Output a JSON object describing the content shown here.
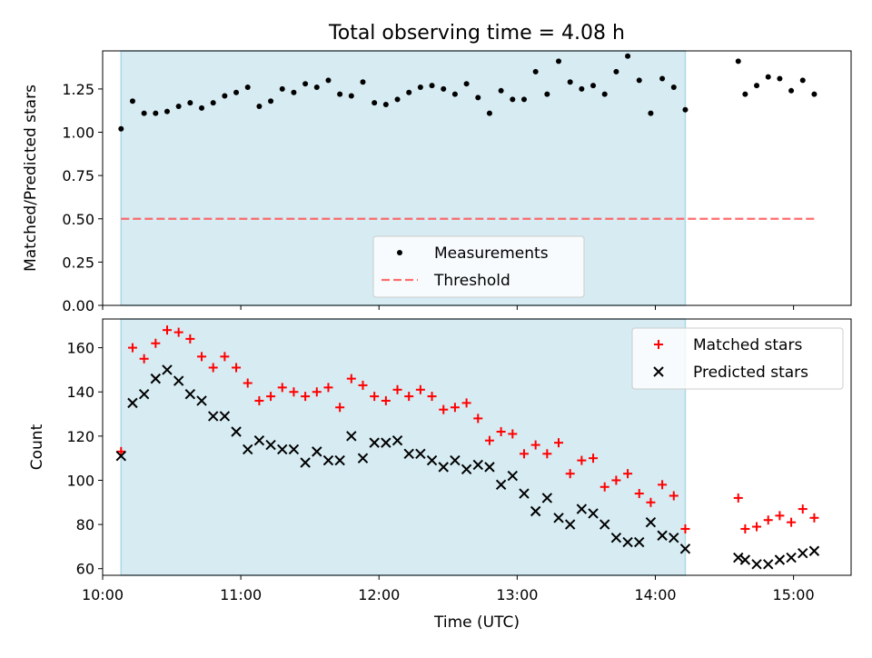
{
  "figure": {
    "title": "Total observing time = 4.08 h",
    "colors": {
      "observing_band": "#add8e6",
      "threshold": "#ff5555",
      "measurements": "#000000",
      "matched": "#ff0000",
      "predicted": "#000000"
    }
  },
  "chart_data": [
    {
      "type": "scatter",
      "panel": "top",
      "title": "Total observing time = 4.08 h",
      "xlabel": "",
      "ylabel": "Matched/Predicted stars",
      "xlim": [
        "10:00",
        "15:25"
      ],
      "ylim": [
        0,
        1.47
      ],
      "yticks": [
        "0.00",
        "0.25",
        "0.50",
        "0.75",
        "1.00",
        "1.25"
      ],
      "shaded_span": [
        "10:08",
        "14:13"
      ],
      "legend": {
        "placement": "lower-center",
        "entries": [
          "Measurements",
          "Threshold"
        ]
      },
      "series": [
        {
          "name": "Measurements",
          "marker": "dot",
          "x": [
            "10:08",
            "10:13",
            "10:18",
            "10:23",
            "10:28",
            "10:33",
            "10:38",
            "10:43",
            "10:48",
            "10:53",
            "10:58",
            "11:03",
            "11:08",
            "11:13",
            "11:18",
            "11:23",
            "11:28",
            "11:33",
            "11:38",
            "11:43",
            "11:48",
            "11:53",
            "11:58",
            "12:03",
            "12:08",
            "12:13",
            "12:18",
            "12:23",
            "12:28",
            "12:33",
            "12:38",
            "12:43",
            "12:48",
            "12:53",
            "12:58",
            "13:03",
            "13:08",
            "13:13",
            "13:18",
            "13:23",
            "13:28",
            "13:33",
            "13:38",
            "13:43",
            "13:48",
            "13:53",
            "13:58",
            "14:03",
            "14:08",
            "14:13",
            "14:36",
            "14:39",
            "14:44",
            "14:49",
            "14:54",
            "14:59",
            "15:04",
            "15:09"
          ],
          "y": [
            1.02,
            1.18,
            1.11,
            1.11,
            1.12,
            1.15,
            1.17,
            1.14,
            1.17,
            1.21,
            1.23,
            1.26,
            1.15,
            1.18,
            1.25,
            1.23,
            1.28,
            1.26,
            1.3,
            1.22,
            1.21,
            1.29,
            1.17,
            1.16,
            1.19,
            1.23,
            1.26,
            1.27,
            1.25,
            1.22,
            1.28,
            1.2,
            1.11,
            1.24,
            1.19,
            1.19,
            1.35,
            1.22,
            1.41,
            1.29,
            1.25,
            1.27,
            1.22,
            1.35,
            1.44,
            1.3,
            1.11,
            1.31,
            1.26,
            1.13,
            1.41,
            1.22,
            1.27,
            1.32,
            1.31,
            1.24,
            1.3,
            1.22
          ]
        },
        {
          "name": "Threshold",
          "style": "dashed",
          "x": [
            "10:08",
            "15:09"
          ],
          "y": [
            0.5,
            0.5
          ]
        }
      ]
    },
    {
      "type": "scatter",
      "panel": "bottom",
      "xlabel": "Time (UTC)",
      "ylabel": "Count",
      "xlim": [
        "10:00",
        "15:25"
      ],
      "ylim": [
        57,
        173
      ],
      "xticks": [
        "10:00",
        "11:00",
        "12:00",
        "13:00",
        "14:00",
        "15:00"
      ],
      "yticks": [
        60,
        80,
        100,
        120,
        140,
        160
      ],
      "shaded_span": [
        "10:08",
        "14:13"
      ],
      "legend": {
        "placement": "upper-right",
        "entries": [
          "Matched stars",
          "Predicted stars"
        ]
      },
      "series": [
        {
          "name": "Matched stars",
          "marker": "plus",
          "x": [
            "10:08",
            "10:13",
            "10:18",
            "10:23",
            "10:28",
            "10:33",
            "10:38",
            "10:43",
            "10:48",
            "10:53",
            "10:58",
            "11:03",
            "11:08",
            "11:13",
            "11:18",
            "11:23",
            "11:28",
            "11:33",
            "11:38",
            "11:43",
            "11:48",
            "11:53",
            "11:58",
            "12:03",
            "12:08",
            "12:13",
            "12:18",
            "12:23",
            "12:28",
            "12:33",
            "12:38",
            "12:43",
            "12:48",
            "12:53",
            "12:58",
            "13:03",
            "13:08",
            "13:13",
            "13:18",
            "13:23",
            "13:28",
            "13:33",
            "13:38",
            "13:43",
            "13:48",
            "13:53",
            "13:58",
            "14:03",
            "14:08",
            "14:13",
            "14:36",
            "14:39",
            "14:44",
            "14:49",
            "14:54",
            "14:59",
            "15:04",
            "15:09"
          ],
          "y": [
            113,
            160,
            155,
            162,
            168,
            167,
            164,
            156,
            151,
            156,
            151,
            144,
            136,
            138,
            142,
            140,
            138,
            140,
            142,
            133,
            146,
            143,
            138,
            136,
            141,
            138,
            141,
            138,
            132,
            133,
            135,
            128,
            118,
            122,
            121,
            112,
            116,
            112,
            117,
            103,
            109,
            110,
            97,
            100,
            103,
            94,
            90,
            98,
            93,
            78,
            92,
            78,
            79,
            82,
            84,
            81,
            87,
            83
          ]
        },
        {
          "name": "Predicted stars",
          "marker": "x",
          "x": [
            "10:08",
            "10:13",
            "10:18",
            "10:23",
            "10:28",
            "10:33",
            "10:38",
            "10:43",
            "10:48",
            "10:53",
            "10:58",
            "11:03",
            "11:08",
            "11:13",
            "11:18",
            "11:23",
            "11:28",
            "11:33",
            "11:38",
            "11:43",
            "11:48",
            "11:53",
            "11:58",
            "12:03",
            "12:08",
            "12:13",
            "12:18",
            "12:23",
            "12:28",
            "12:33",
            "12:38",
            "12:43",
            "12:48",
            "12:53",
            "12:58",
            "13:03",
            "13:08",
            "13:13",
            "13:18",
            "13:23",
            "13:28",
            "13:33",
            "13:38",
            "13:43",
            "13:48",
            "13:53",
            "13:58",
            "14:03",
            "14:08",
            "14:13",
            "14:36",
            "14:39",
            "14:44",
            "14:49",
            "14:54",
            "14:59",
            "15:04",
            "15:09"
          ],
          "y": [
            111,
            135,
            139,
            146,
            150,
            145,
            139,
            136,
            129,
            129,
            122,
            114,
            118,
            116,
            114,
            114,
            108,
            113,
            109,
            109,
            120,
            110,
            117,
            117,
            118,
            112,
            112,
            109,
            106,
            109,
            105,
            107,
            106,
            98,
            102,
            94,
            86,
            92,
            83,
            80,
            87,
            85,
            80,
            74,
            72,
            72,
            81,
            75,
            74,
            69,
            65,
            64,
            62,
            62,
            64,
            65,
            67,
            68
          ]
        }
      ]
    }
  ]
}
